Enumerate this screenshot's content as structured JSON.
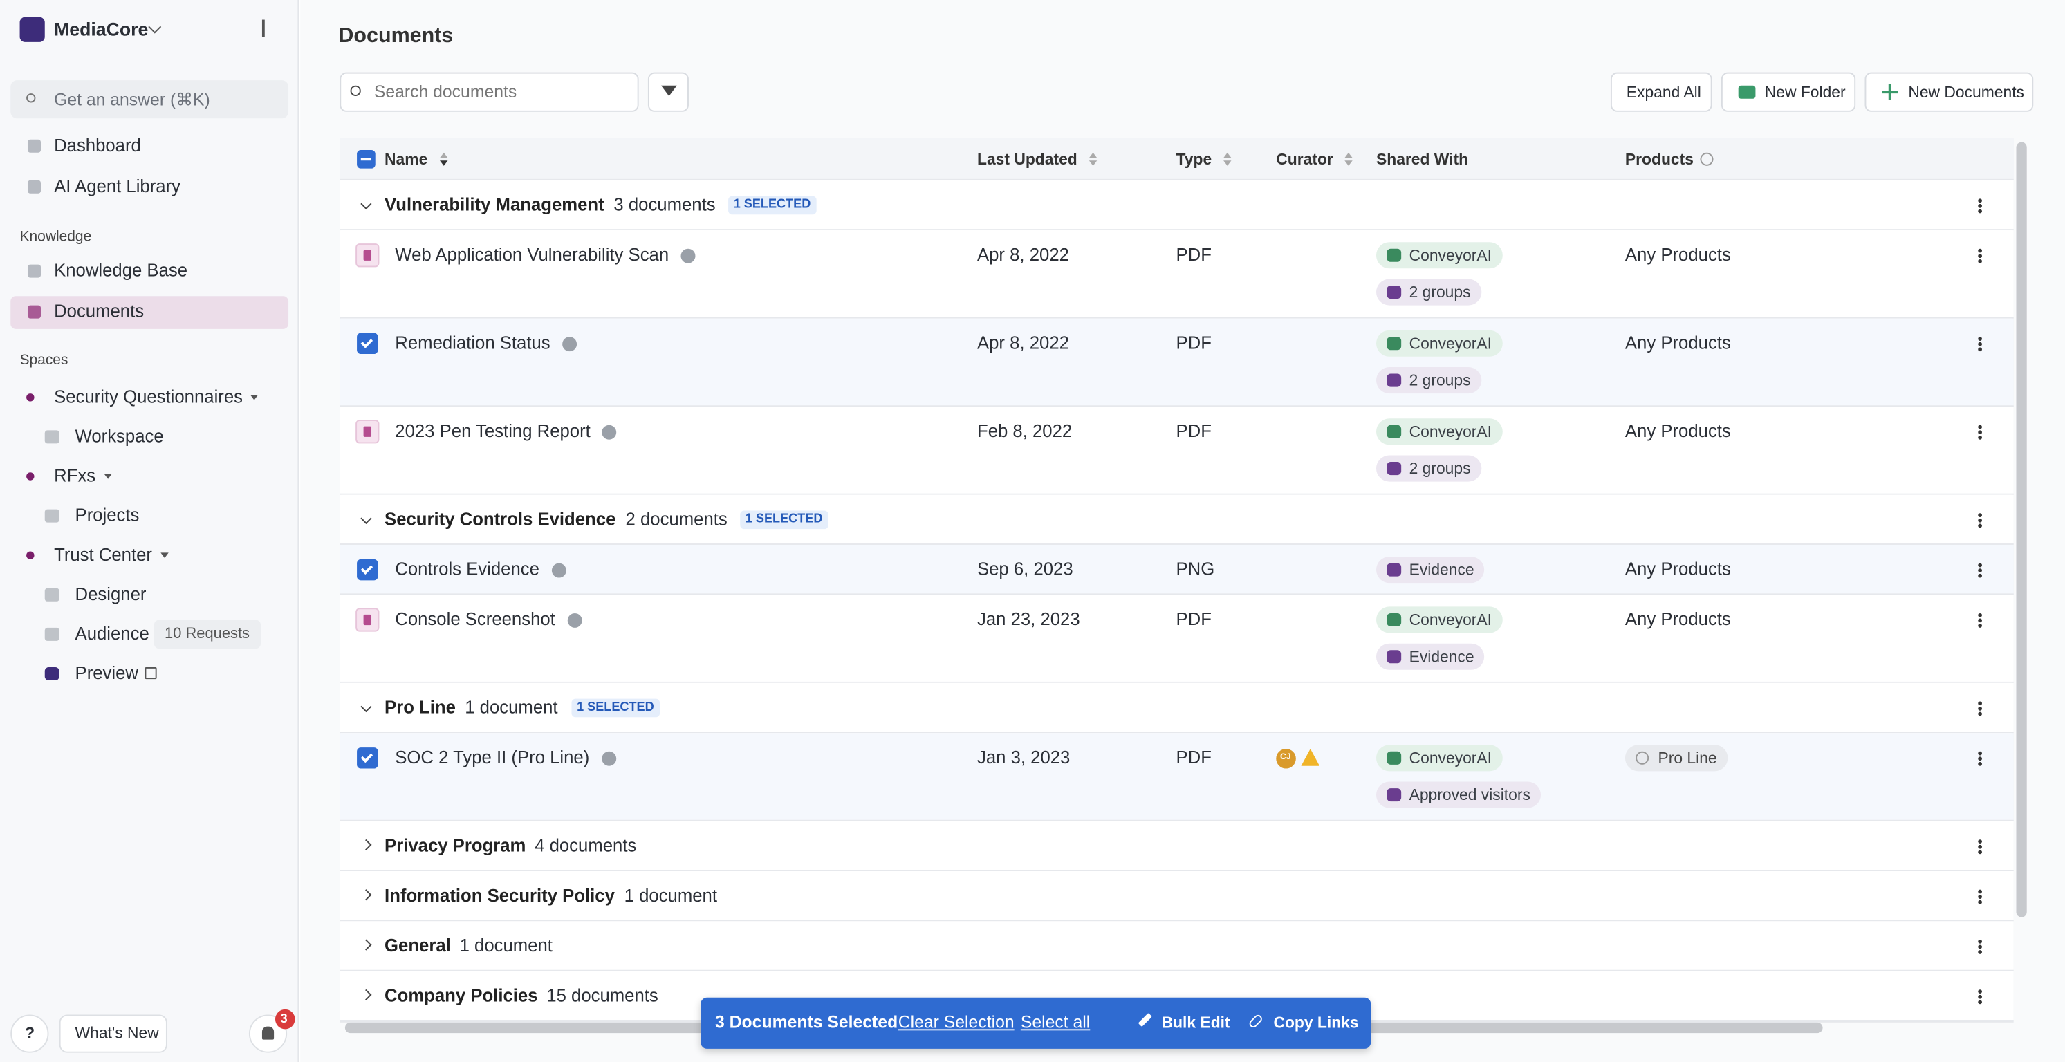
{
  "sidebar": {
    "workspace": "MediaCore",
    "search": "Get an answer (⌘K)",
    "nav": [
      "Dashboard",
      "AI Agent Library"
    ],
    "knowledge_label": "Knowledge",
    "knowledge": [
      "Knowledge Base",
      "Documents"
    ],
    "spaces_label": "Spaces",
    "spaces": [
      {
        "label": "Security Questionnaires",
        "children": [
          "Workspace"
        ]
      },
      {
        "label": "RFxs",
        "children": [
          "Projects"
        ]
      },
      {
        "label": "Trust Center",
        "children": [
          "Designer",
          "Audience",
          "Preview"
        ]
      }
    ],
    "audience_badge": "10 Requests",
    "help": "?",
    "whats_new": "What's New",
    "notifications": "3"
  },
  "page": {
    "title": "Documents",
    "search_placeholder": "Search documents",
    "buttons": [
      "Expand All",
      "New Folder",
      "New Documents"
    ]
  },
  "table": {
    "columns": [
      "Name",
      "Last Updated",
      "Type",
      "Curator",
      "Shared With",
      "Products"
    ],
    "groups": [
      {
        "name": "Vulnerability Management",
        "count": "3 documents",
        "selected": "1 SELECTED",
        "expanded": true,
        "rows": [
          {
            "name": "Web Application Vulnerability Scan",
            "date": "Apr 8, 2022",
            "type": "PDF",
            "checked": false,
            "shared": [
              {
                "label": "ConveyorAI",
                "color": "#e3f1e8"
              },
              {
                "label": "2 groups",
                "color": "#ece7f1"
              }
            ],
            "products": "Any Products"
          },
          {
            "name": "Remediation Status",
            "date": "Apr 8, 2022",
            "type": "PDF",
            "checked": true,
            "shared": [
              {
                "label": "ConveyorAI",
                "color": "#e3f1e8"
              },
              {
                "label": "2 groups",
                "color": "#ece7f1"
              }
            ],
            "products": "Any Products"
          },
          {
            "name": "2023 Pen Testing Report",
            "date": "Feb 8, 2022",
            "type": "PDF",
            "checked": false,
            "shared": [
              {
                "label": "ConveyorAI",
                "color": "#e3f1e8"
              },
              {
                "label": "2 groups",
                "color": "#ece7f1"
              }
            ],
            "products": "Any Products"
          }
        ]
      },
      {
        "name": "Security Controls Evidence",
        "count": "2 documents",
        "selected": "1 SELECTED",
        "expanded": true,
        "rows": [
          {
            "name": "Controls Evidence",
            "date": "Sep 6, 2023",
            "type": "PNG",
            "checked": true,
            "shared": [
              {
                "label": "Evidence",
                "color": "#ece7f1"
              }
            ],
            "products": "Any Products"
          },
          {
            "name": "Console Screenshot",
            "date": "Jan 23, 2023",
            "type": "PDF",
            "checked": false,
            "shared": [
              {
                "label": "ConveyorAI",
                "color": "#e3f1e8"
              },
              {
                "label": "Evidence",
                "color": "#ece7f1"
              }
            ],
            "products": "Any Products"
          }
        ]
      },
      {
        "name": "Pro Line",
        "count": "1 document",
        "selected": "1 SELECTED",
        "expanded": true,
        "rows": [
          {
            "name": "SOC 2 Type II (Pro Line)",
            "date": "Jan 3, 2023",
            "type": "PDF",
            "checked": true,
            "curator": "CJ",
            "shared": [
              {
                "label": "ConveyorAI",
                "color": "#e3f1e8"
              },
              {
                "label": "Approved visitors",
                "color": "#ece7f1"
              }
            ],
            "products": {
              "label": "Pro Line",
              "color": "#e8eaee"
            }
          }
        ]
      },
      {
        "name": "Privacy Program",
        "count": "4 documents",
        "expanded": false
      },
      {
        "name": "Information Security Policy",
        "count": "1 document",
        "expanded": false
      },
      {
        "name": "General",
        "count": "1 document",
        "expanded": false
      },
      {
        "name": "Company Policies",
        "count": "15 documents",
        "expanded": false
      }
    ]
  },
  "selection_bar": {
    "count": "3 Documents Selected",
    "clear": "Clear Selection",
    "select_all": "Select all",
    "actions": [
      "Bulk Edit",
      "Copy Links"
    ]
  }
}
